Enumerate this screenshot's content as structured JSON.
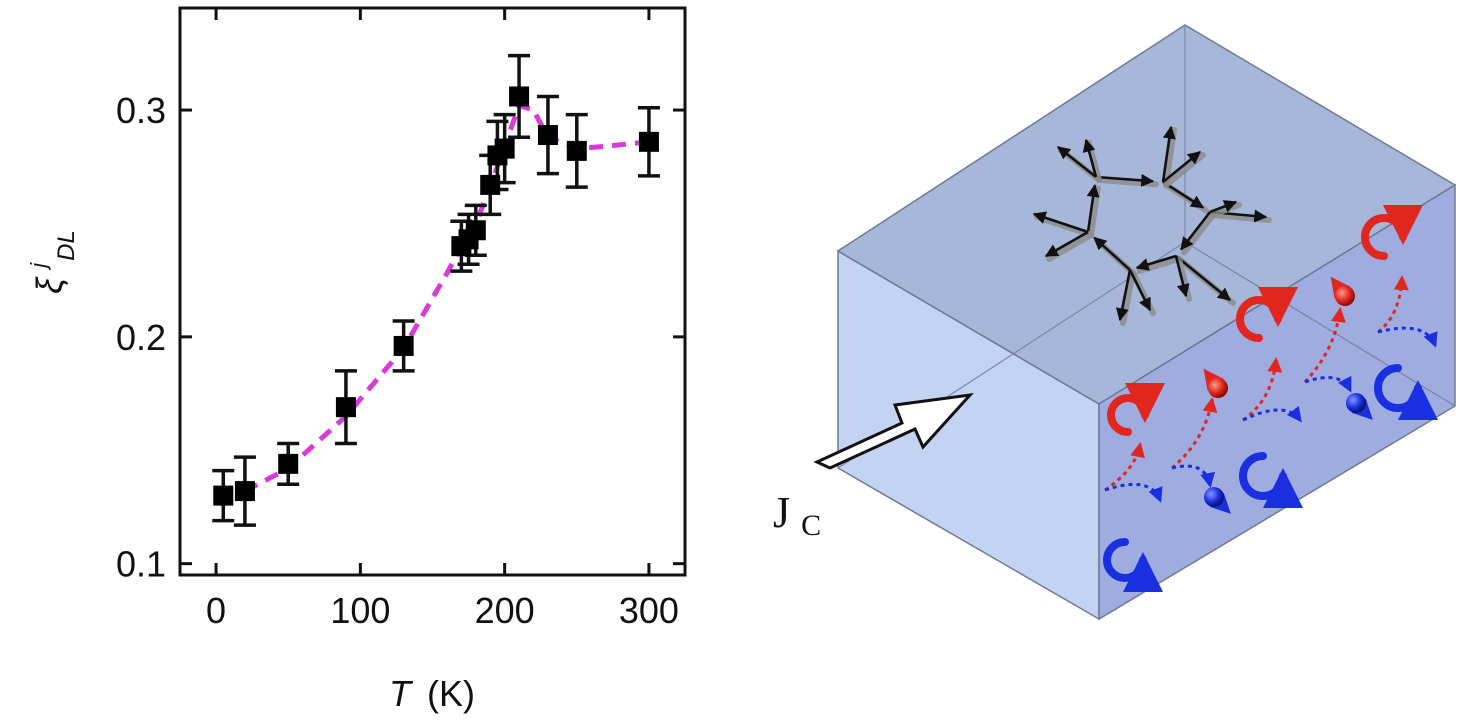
{
  "chart_data": {
    "type": "scatter",
    "x": [
      5,
      20,
      50,
      90,
      130,
      170,
      175,
      180,
      190,
      195,
      200,
      210,
      230,
      250,
      300
    ],
    "y": [
      0.13,
      0.132,
      0.144,
      0.169,
      0.196,
      0.24,
      0.243,
      0.247,
      0.267,
      0.28,
      0.283,
      0.306,
      0.289,
      0.282,
      0.286
    ],
    "y_error": [
      0.011,
      0.015,
      0.009,
      0.016,
      0.011,
      0.011,
      0.011,
      0.011,
      0.013,
      0.015,
      0.015,
      0.018,
      0.017,
      0.016,
      0.015
    ],
    "trend_line": {
      "color": "#d93ad9",
      "style": "dashed",
      "x": [
        20,
        50,
        90,
        130,
        160,
        170,
        180,
        190,
        200,
        210,
        220,
        230,
        250,
        270,
        300
      ],
      "y": [
        0.132,
        0.142,
        0.165,
        0.195,
        0.228,
        0.24,
        0.25,
        0.266,
        0.284,
        0.302,
        0.3,
        0.288,
        0.283,
        0.284,
        0.286
      ]
    },
    "xlabel_symbol": "T",
    "xlabel_unit": "(K)",
    "ylabel_main": "ξ",
    "ylabel_sup": "j",
    "ylabel_sub": "DL",
    "xlim": [
      -25,
      325
    ],
    "ylim": [
      0.095,
      0.345
    ],
    "xticks": [
      0,
      100,
      200,
      300
    ],
    "xtick_labels": [
      "0",
      "100",
      "200",
      "300"
    ],
    "yticks": [
      0.1,
      0.2,
      0.3
    ],
    "ytick_labels": [
      "0.1",
      "0.2",
      "0.3"
    ],
    "grid": false,
    "marker": "square",
    "marker_color": "#000000"
  },
  "diagram": {
    "current_label": "J",
    "current_label_sub": "C",
    "colors": {
      "box_front": "#c3d3f2",
      "box_side": "#9faee0",
      "box_top": "#a6b6d8",
      "spin_up": "#e0261e",
      "spin_down": "#1a2fe0"
    }
  }
}
